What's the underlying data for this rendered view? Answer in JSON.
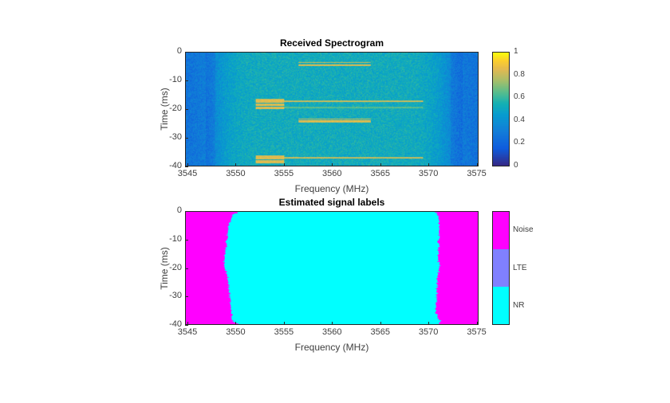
{
  "chart_data": [
    {
      "type": "heatmap",
      "title": "Received Spectrogram",
      "xlabel": "Frequency (MHz)",
      "ylabel": "Time (ms)",
      "xlim": [
        3544.75,
        3575.2
      ],
      "ylim": [
        -40,
        0
      ],
      "xticks": [
        3545,
        3550,
        3555,
        3560,
        3565,
        3570,
        3575
      ],
      "yticks": [
        0,
        -10,
        -20,
        -30,
        -40
      ],
      "colormap": "parula",
      "clim": [
        0,
        1
      ],
      "colorbar_ticks": [
        0,
        0.2,
        0.4,
        0.6,
        0.8,
        1
      ],
      "background_level": {
        "out_of_band": 0.25,
        "in_band": 0.52,
        "band": [
          3548,
          3572
        ]
      },
      "signal_segments": [
        {
          "f": [
            3556.5,
            3564
          ],
          "t": [
            -3.3,
            -3.7
          ],
          "level": 0.8
        },
        {
          "f": [
            3556.5,
            3564
          ],
          "t": [
            -4.2,
            -4.8
          ],
          "level": 0.85
        },
        {
          "f": [
            3552,
            3555
          ],
          "t": [
            -16.3,
            -17.8
          ],
          "level": 0.85
        },
        {
          "f": [
            3552,
            3555
          ],
          "t": [
            -18.1,
            -19.0
          ],
          "level": 0.85
        },
        {
          "f": [
            3552,
            3555
          ],
          "t": [
            -19.3,
            -20.0
          ],
          "level": 0.85
        },
        {
          "f": [
            3555,
            3569.5
          ],
          "t": [
            -16.9,
            -17.4
          ],
          "level": 0.8
        },
        {
          "f": [
            3555,
            3569.5
          ],
          "t": [
            -19.3,
            -19.7
          ],
          "level": 0.65
        },
        {
          "f": [
            3556.5,
            3564
          ],
          "t": [
            -23.2,
            -23.6
          ],
          "level": 0.8
        },
        {
          "f": [
            3556.5,
            3564
          ],
          "t": [
            -24.0,
            -24.6
          ],
          "level": 0.85
        },
        {
          "f": [
            3552,
            3555
          ],
          "t": [
            -36.4,
            -37.8
          ],
          "level": 0.85
        },
        {
          "f": [
            3552,
            3555
          ],
          "t": [
            -38.1,
            -39.2
          ],
          "level": 0.85
        },
        {
          "f": [
            3555,
            3569.5
          ],
          "t": [
            -37.0,
            -37.5
          ],
          "level": 0.8
        }
      ]
    },
    {
      "type": "heatmap",
      "title": "Estimated signal labels",
      "xlabel": "Frequency (MHz)",
      "ylabel": "Time (ms)",
      "xlim": [
        3544.75,
        3575.2
      ],
      "ylim": [
        -40,
        0
      ],
      "xticks": [
        3545,
        3550,
        3555,
        3560,
        3565,
        3570,
        3575
      ],
      "yticks": [
        0,
        -10,
        -20,
        -30,
        -40
      ],
      "categories": [
        {
          "name": "Noise",
          "color": "#ff00ff"
        },
        {
          "name": "LTE",
          "color": "#8080ff"
        },
        {
          "name": "NR",
          "color": "#00ffff"
        }
      ],
      "nr_region": [
        {
          "t": 0,
          "f": [
            3550.3,
            3570.8
          ]
        },
        {
          "t": -1,
          "f": [
            3549.6,
            3571.0
          ]
        },
        {
          "t": -5,
          "f": [
            3549.2,
            3571.2
          ]
        },
        {
          "t": -10,
          "f": [
            3549.0,
            3571.1
          ]
        },
        {
          "t": -17,
          "f": [
            3548.8,
            3571.1
          ]
        },
        {
          "t": -19,
          "f": [
            3548.7,
            3571.2
          ]
        },
        {
          "t": -23,
          "f": [
            3549.1,
            3571.0
          ]
        },
        {
          "t": -30,
          "f": [
            3549.3,
            3570.9
          ]
        },
        {
          "t": -36,
          "f": [
            3549.5,
            3570.8
          ]
        },
        {
          "t": -39,
          "f": [
            3549.6,
            3571.3
          ]
        },
        {
          "t": -40,
          "f": [
            3550.2,
            3571.0
          ]
        }
      ]
    }
  ]
}
